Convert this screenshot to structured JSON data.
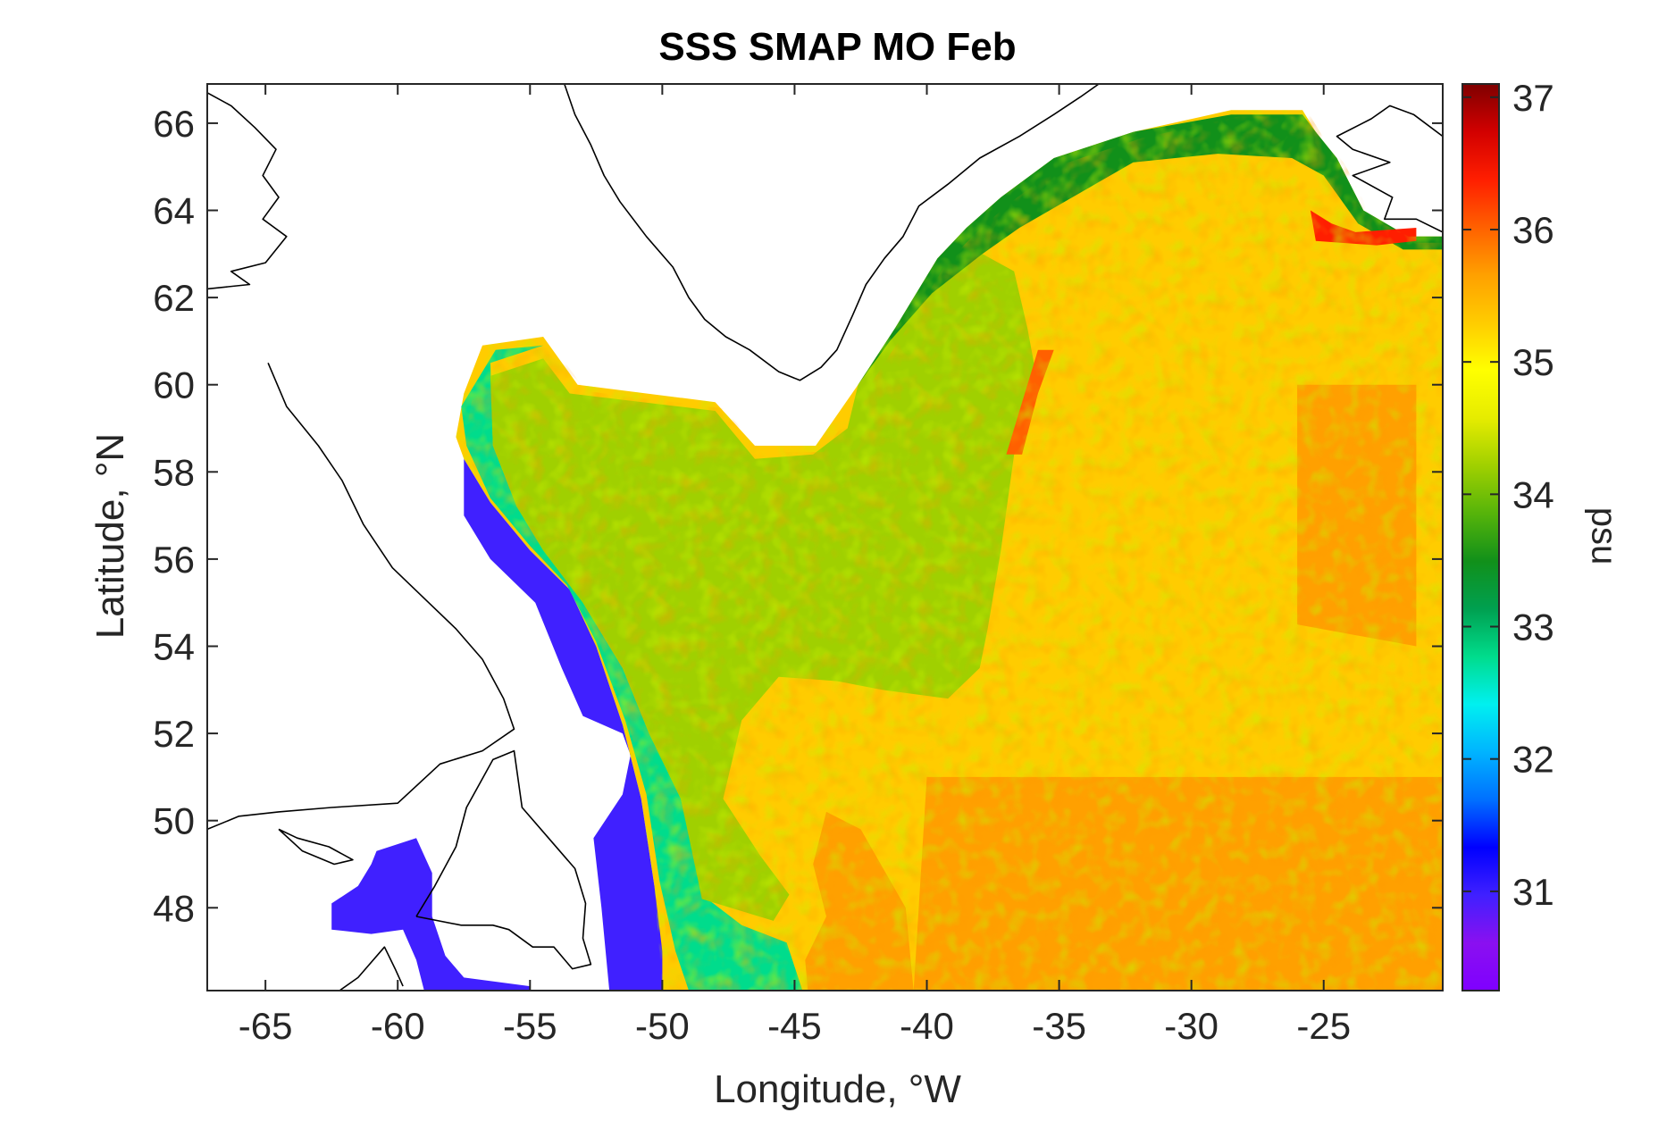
{
  "chart_data": {
    "type": "heatmap",
    "title": "SSS SMAP MO Feb",
    "xlabel": "Longitude, °W",
    "ylabel": "Latitude, °N",
    "colorbar_label": "psu",
    "xlim": [
      -67.2,
      -20.5
    ],
    "ylim": [
      46.1,
      66.9
    ],
    "xticks": [
      -65,
      -60,
      -55,
      -50,
      -45,
      -40,
      -35,
      -30,
      -25
    ],
    "xtick_labels": [
      "-65",
      "-60",
      "-55",
      "-50",
      "-45",
      "-40",
      "-35",
      "-30",
      "-25"
    ],
    "yticks": [
      48,
      50,
      52,
      54,
      56,
      58,
      60,
      62,
      64,
      66
    ],
    "ytick_labels": [
      "48",
      "50",
      "52",
      "54",
      "56",
      "58",
      "60",
      "62",
      "64",
      "66"
    ],
    "clim": [
      30.25,
      37.1
    ],
    "cticks": [
      31,
      32,
      33,
      34,
      35,
      36,
      37
    ],
    "ctick_labels": [
      "31",
      "32",
      "33",
      "34",
      "35",
      "36",
      "37"
    ],
    "colormap": [
      "#7F00FF",
      "#8A10F0",
      "#4020FF",
      "#0000FF",
      "#0070FF",
      "#00B4FF",
      "#00F0F0",
      "#00DC8C",
      "#00A050",
      "#11901A",
      "#56B40A",
      "#A0D000",
      "#E6EC00",
      "#FFFF00",
      "#FFCC00",
      "#FFA000",
      "#FF6000",
      "#FF1E00",
      "#D20000",
      "#7F0000"
    ],
    "regions": [
      {
        "name": "labrador-shelf",
        "value": 30.8,
        "poly": [
          [
            -57.5,
            58.3
          ],
          [
            -56.5,
            57.3
          ],
          [
            -55,
            56.2
          ],
          [
            -53.5,
            55.3
          ],
          [
            -52.5,
            54
          ],
          [
            -51.5,
            52.2
          ],
          [
            -50.8,
            50.5
          ],
          [
            -50.3,
            48.5
          ],
          [
            -50,
            47
          ],
          [
            -50,
            46.1
          ],
          [
            -52,
            46.1
          ],
          [
            -52.3,
            48
          ],
          [
            -52.6,
            49.6
          ],
          [
            -51.5,
            50.6
          ],
          [
            -51.2,
            51.5
          ],
          [
            -51.5,
            52
          ],
          [
            -53,
            52.4
          ],
          [
            -53.8,
            53.5
          ],
          [
            -54.8,
            55
          ],
          [
            -56.5,
            56
          ],
          [
            -57.5,
            57
          ]
        ]
      },
      {
        "name": "gulf-st-lawrence",
        "value": 30.8,
        "poly": [
          [
            -60.8,
            49.3
          ],
          [
            -59.3,
            49.6
          ],
          [
            -58.7,
            48.8
          ],
          [
            -58.7,
            47.8
          ],
          [
            -58.2,
            46.9
          ],
          [
            -57.5,
            46.4
          ],
          [
            -55,
            46.2
          ],
          [
            -55,
            46.1
          ],
          [
            -59,
            46.1
          ],
          [
            -59.3,
            46.8
          ],
          [
            -59.8,
            47.5
          ],
          [
            -61,
            47.4
          ],
          [
            -62.5,
            47.5
          ],
          [
            -62.5,
            48.1
          ],
          [
            -61.5,
            48.5
          ],
          [
            -61,
            49
          ]
        ]
      },
      {
        "name": "labrador-coastal-current",
        "value": 32.8,
        "poly": [
          [
            -57.4,
            58.6
          ],
          [
            -56.5,
            57.4
          ],
          [
            -55,
            56.3
          ],
          [
            -53.6,
            55.4
          ],
          [
            -52.5,
            54.1
          ],
          [
            -51.4,
            52.3
          ],
          [
            -50.6,
            50.6
          ],
          [
            -50.1,
            48.6
          ],
          [
            -49.5,
            47
          ],
          [
            -49,
            46.1
          ],
          [
            -44.7,
            46.1
          ],
          [
            -45.3,
            47.2
          ],
          [
            -47,
            47.6
          ],
          [
            -48.5,
            48.3
          ],
          [
            -49.3,
            50.5
          ],
          [
            -50.5,
            52
          ],
          [
            -51.5,
            53.5
          ],
          [
            -53,
            55
          ],
          [
            -54.5,
            56.2
          ],
          [
            -55.5,
            57.2
          ],
          [
            -56.4,
            58.6
          ],
          [
            -56.5,
            60.5
          ],
          [
            -54.5,
            60.9
          ],
          [
            -56.3,
            60.8
          ],
          [
            -57.6,
            59.5
          ]
        ]
      },
      {
        "name": "labrador-sea-interior",
        "value": 34.1,
        "poly": [
          [
            -56.5,
            60.2
          ],
          [
            -54.5,
            60.6
          ],
          [
            -53.5,
            59.8
          ],
          [
            -48,
            59.4
          ],
          [
            -46.5,
            58.3
          ],
          [
            -44.3,
            58.4
          ],
          [
            -43,
            59
          ],
          [
            -42.6,
            60
          ],
          [
            -41.4,
            61
          ],
          [
            -39.8,
            62.1
          ],
          [
            -37.9,
            63
          ],
          [
            -36.7,
            62.6
          ],
          [
            -36.2,
            61.3
          ],
          [
            -35.8,
            60
          ],
          [
            -36.7,
            58.4
          ],
          [
            -37.2,
            56.2
          ],
          [
            -37.7,
            54.4
          ],
          [
            -38,
            53.5
          ],
          [
            -39.2,
            52.8
          ],
          [
            -41.7,
            53
          ],
          [
            -43.4,
            53.2
          ],
          [
            -45.6,
            53.3
          ],
          [
            -47,
            52.3
          ],
          [
            -47.7,
            50.5
          ],
          [
            -46.3,
            49.2
          ],
          [
            -45.2,
            48.3
          ],
          [
            -45.8,
            47.7
          ],
          [
            -48.5,
            48.2
          ],
          [
            -49.3,
            50.5
          ],
          [
            -50.5,
            52
          ],
          [
            -51.5,
            53.5
          ],
          [
            -53,
            55
          ],
          [
            -54.5,
            56.2
          ],
          [
            -55.5,
            57.2
          ],
          [
            -56.4,
            58.6
          ]
        ]
      },
      {
        "name": "irminger-coastal",
        "value": 33.6,
        "poly": [
          [
            -42.6,
            60
          ],
          [
            -41.2,
            61.3
          ],
          [
            -39.6,
            62.9
          ],
          [
            -38.5,
            63.6
          ],
          [
            -37.2,
            64.3
          ],
          [
            -35.2,
            65.2
          ],
          [
            -32.2,
            65.8
          ],
          [
            -28.5,
            66.2
          ],
          [
            -25.8,
            66.2
          ],
          [
            -25.3,
            65.8
          ],
          [
            -24.5,
            65.2
          ],
          [
            -23.5,
            64
          ],
          [
            -21.8,
            63.4
          ],
          [
            -20.5,
            63.4
          ],
          [
            -20.5,
            63.1
          ],
          [
            -22,
            63.1
          ],
          [
            -23.7,
            63.7
          ],
          [
            -25,
            64.8
          ],
          [
            -26.2,
            65.2
          ],
          [
            -29,
            65.3
          ],
          [
            -32.2,
            65.1
          ],
          [
            -34.5,
            64.3
          ],
          [
            -36.5,
            63.6
          ],
          [
            -37.9,
            63
          ],
          [
            -39.8,
            62.1
          ],
          [
            -41.4,
            61
          ]
        ]
      },
      {
        "name": "denmark-strait-salty",
        "value": 36.4,
        "poly": [
          [
            -25.5,
            64
          ],
          [
            -25.3,
            63.3
          ],
          [
            -23,
            63.2
          ],
          [
            -21.5,
            63.3
          ],
          [
            -21.5,
            63.6
          ],
          [
            -23.8,
            63.5
          ],
          [
            -24.7,
            63.7
          ]
        ]
      },
      {
        "name": "grand-banks-warm",
        "value": 35.6,
        "poly": [
          [
            -44.5,
            46.1
          ],
          [
            -40.5,
            46.1
          ],
          [
            -40.8,
            48
          ],
          [
            -42.5,
            49.8
          ],
          [
            -43.8,
            50.2
          ],
          [
            -44.3,
            49
          ],
          [
            -43.8,
            47.8
          ],
          [
            -44.6,
            46.8
          ]
        ]
      },
      {
        "name": "east-warm-band",
        "value": 35.7,
        "poly": [
          [
            -26,
            60
          ],
          [
            -21.5,
            60
          ],
          [
            -21.5,
            54
          ],
          [
            -26,
            54.5
          ]
        ]
      },
      {
        "name": "south-warm-band",
        "value": 35.8,
        "poly": [
          [
            -40,
            51
          ],
          [
            -20.5,
            51
          ],
          [
            -20.5,
            46.1
          ],
          [
            -40.5,
            46.1
          ]
        ]
      },
      {
        "name": "sub-arctic-front-warm",
        "value": 36.1,
        "poly": [
          [
            -35.8,
            60.8
          ],
          [
            -35.2,
            60.8
          ],
          [
            -35.8,
            59.8
          ],
          [
            -36.4,
            58.4
          ],
          [
            -37,
            58.4
          ]
        ]
      }
    ],
    "annotations": [
      {
        "label": "north-atlantic-default",
        "value": 35.25
      }
    ],
    "coastlines": [
      {
        "name": "greenland-southwest-coast",
        "line": [
          [
            -53.7,
            66.9
          ],
          [
            -53.3,
            66.2
          ],
          [
            -52.7,
            65.5
          ],
          [
            -52.2,
            64.8
          ],
          [
            -51.6,
            64.2
          ],
          [
            -50.6,
            63.4
          ],
          [
            -49.6,
            62.7
          ],
          [
            -49,
            62
          ],
          [
            -48.4,
            61.5
          ],
          [
            -47.6,
            61.1
          ],
          [
            -46.7,
            60.8
          ],
          [
            -45.6,
            60.3
          ],
          [
            -44.8,
            60.1
          ],
          [
            -44,
            60.4
          ],
          [
            -43.4,
            60.8
          ],
          [
            -42.8,
            61.6
          ],
          [
            -42.3,
            62.3
          ],
          [
            -41.6,
            62.9
          ],
          [
            -40.9,
            63.4
          ],
          [
            -40.3,
            64.1
          ],
          [
            -39.2,
            64.6
          ],
          [
            -38,
            65.2
          ],
          [
            -36.5,
            65.7
          ],
          [
            -35.2,
            66.2
          ],
          [
            -34.2,
            66.6
          ],
          [
            -33.5,
            66.9
          ]
        ]
      },
      {
        "name": "baffin-island",
        "line": [
          [
            -67.2,
            66.7
          ],
          [
            -66.3,
            66.4
          ],
          [
            -65.4,
            65.9
          ],
          [
            -64.6,
            65.4
          ],
          [
            -65.1,
            64.8
          ],
          [
            -64.5,
            64.3
          ],
          [
            -65.1,
            63.8
          ],
          [
            -64.2,
            63.4
          ],
          [
            -65,
            62.8
          ],
          [
            -66.3,
            62.6
          ],
          [
            -65.6,
            62.3
          ],
          [
            -67.2,
            62.2
          ]
        ]
      },
      {
        "name": "labrador-coast",
        "line": [
          [
            -64.9,
            60.5
          ],
          [
            -64.2,
            59.5
          ],
          [
            -63,
            58.6
          ],
          [
            -62.1,
            57.8
          ],
          [
            -61.3,
            56.8
          ],
          [
            -60.2,
            55.8
          ],
          [
            -59,
            55.1
          ],
          [
            -57.8,
            54.4
          ],
          [
            -56.8,
            53.7
          ],
          [
            -56,
            52.8
          ],
          [
            -55.6,
            52.1
          ],
          [
            -56.8,
            51.6
          ],
          [
            -58.4,
            51.3
          ],
          [
            -60,
            50.4
          ],
          [
            -62.5,
            50.3
          ],
          [
            -64.5,
            50.2
          ],
          [
            -66,
            50.1
          ],
          [
            -67.2,
            49.8
          ]
        ]
      },
      {
        "name": "newfoundland",
        "line": [
          [
            -59.3,
            47.8
          ],
          [
            -58.6,
            48.5
          ],
          [
            -57.8,
            49.4
          ],
          [
            -57.4,
            50.3
          ],
          [
            -56.4,
            51.4
          ],
          [
            -55.6,
            51.6
          ],
          [
            -55.3,
            50.3
          ],
          [
            -54.3,
            49.6
          ],
          [
            -53.3,
            48.9
          ],
          [
            -52.9,
            48.1
          ],
          [
            -53,
            47.3
          ],
          [
            -52.7,
            46.7
          ],
          [
            -53.4,
            46.6
          ],
          [
            -54.1,
            47.1
          ],
          [
            -54.9,
            47.1
          ],
          [
            -55.8,
            47.5
          ],
          [
            -56.4,
            47.6
          ],
          [
            -57.6,
            47.6
          ],
          [
            -59.3,
            47.8
          ]
        ]
      },
      {
        "name": "anticosti-island",
        "line": [
          [
            -64.5,
            49.8
          ],
          [
            -63.8,
            49.6
          ],
          [
            -62.6,
            49.4
          ],
          [
            -61.7,
            49.1
          ],
          [
            -62.4,
            49
          ],
          [
            -63.6,
            49.3
          ],
          [
            -64.5,
            49.8
          ]
        ]
      },
      {
        "name": "nova-scotia-cape-breton",
        "line": [
          [
            -62.2,
            46.1
          ],
          [
            -61.5,
            46.4
          ],
          [
            -60.5,
            47.1
          ],
          [
            -60.1,
            46.6
          ],
          [
            -59.8,
            46.2
          ]
        ]
      },
      {
        "name": "iceland",
        "line": [
          [
            -20.5,
            63.5
          ],
          [
            -21.5,
            63.8
          ],
          [
            -22.7,
            63.8
          ],
          [
            -22.4,
            64.3
          ],
          [
            -23.9,
            64.8
          ],
          [
            -22.5,
            65.1
          ],
          [
            -23.9,
            65.4
          ],
          [
            -24.5,
            65.7
          ],
          [
            -23.2,
            66.1
          ],
          [
            -22.5,
            66.4
          ],
          [
            -21.6,
            66.2
          ],
          [
            -20.5,
            65.7
          ]
        ]
      }
    ]
  }
}
